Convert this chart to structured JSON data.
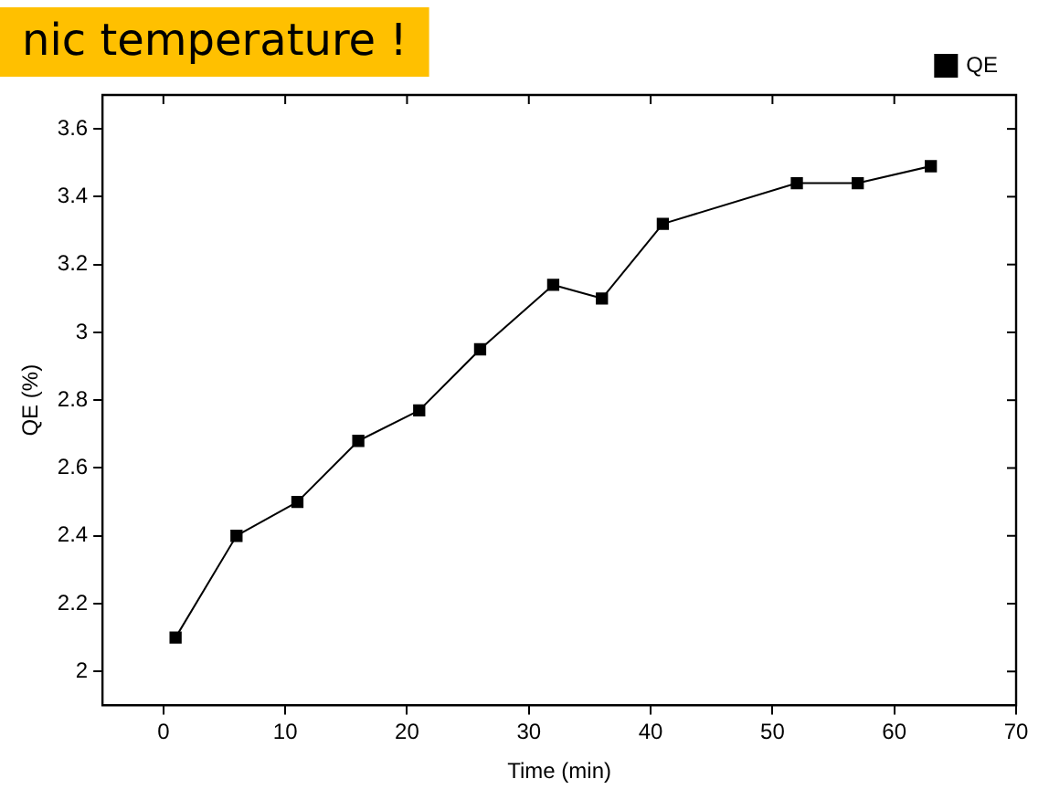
{
  "chart_data": {
    "type": "line",
    "xlabel": "Time (min)",
    "ylabel": "QE (%)",
    "annotations": [
      "nic temperature !"
    ],
    "x": [
      1,
      6,
      11,
      16,
      21,
      26,
      32,
      36,
      41,
      52,
      57,
      63
    ],
    "series": [
      {
        "name": "QE",
        "color": "#000000",
        "values": [
          2.1,
          2.4,
          2.5,
          2.68,
          2.77,
          2.95,
          3.14,
          3.1,
          3.32,
          3.44,
          3.44,
          3.49
        ]
      }
    ],
    "xlim": [
      -5,
      70
    ],
    "xticks": [
      0,
      10,
      20,
      30,
      40,
      50,
      60,
      70
    ],
    "ylim": [
      1.9,
      3.7
    ],
    "yticks": [
      2,
      {
        "value": 2.2,
        "label": "2.2"
      },
      {
        "value": 2.4,
        "label": "2.4"
      },
      {
        "value": 2.6,
        "label": "2.6"
      },
      {
        "value": 2.8,
        "label": "2.8"
      },
      3,
      {
        "value": 3.2,
        "label": "3.2"
      },
      {
        "value": 3.4,
        "label": "3.4"
      },
      {
        "value": 3.6,
        "label": "3.6"
      }
    ],
    "grid": false,
    "legend": "top right",
    "marker": "square",
    "line_style": "solid"
  }
}
